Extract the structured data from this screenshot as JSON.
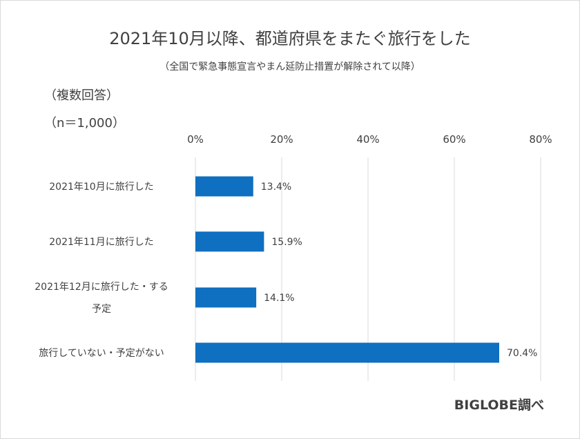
{
  "title": "2021年10月以降、都道府県をまたぐ旅行をした",
  "subtitle": "（全国で緊急事態宣言やまん延防止措置が解除されて以降）",
  "notes": {
    "multiple_answers": "（複数回答）",
    "sample_size": "（n＝1,000）"
  },
  "source": "BIGLOBE調べ",
  "colors": {
    "bar": "#0f6fc0",
    "grid": "#d9d9d9",
    "text": "#404040"
  },
  "chart_data": {
    "type": "bar",
    "orientation": "horizontal",
    "categories": [
      [
        "2021年10月に旅行した"
      ],
      [
        "2021年11月に旅行した"
      ],
      [
        "2021年12月に旅行した・する",
        "予定"
      ],
      [
        "旅行していない・予定がない"
      ]
    ],
    "values": [
      13.4,
      15.9,
      14.1,
      70.4
    ],
    "value_labels": [
      "13.4%",
      "15.9%",
      "14.1%",
      "70.4%"
    ],
    "xlim": [
      0,
      80
    ],
    "xticks": [
      0,
      20,
      40,
      60,
      80
    ],
    "xtick_labels": [
      "0%",
      "20%",
      "40%",
      "60%",
      "80%"
    ],
    "x_axis_position": "top",
    "grid": true,
    "legend": "none"
  }
}
